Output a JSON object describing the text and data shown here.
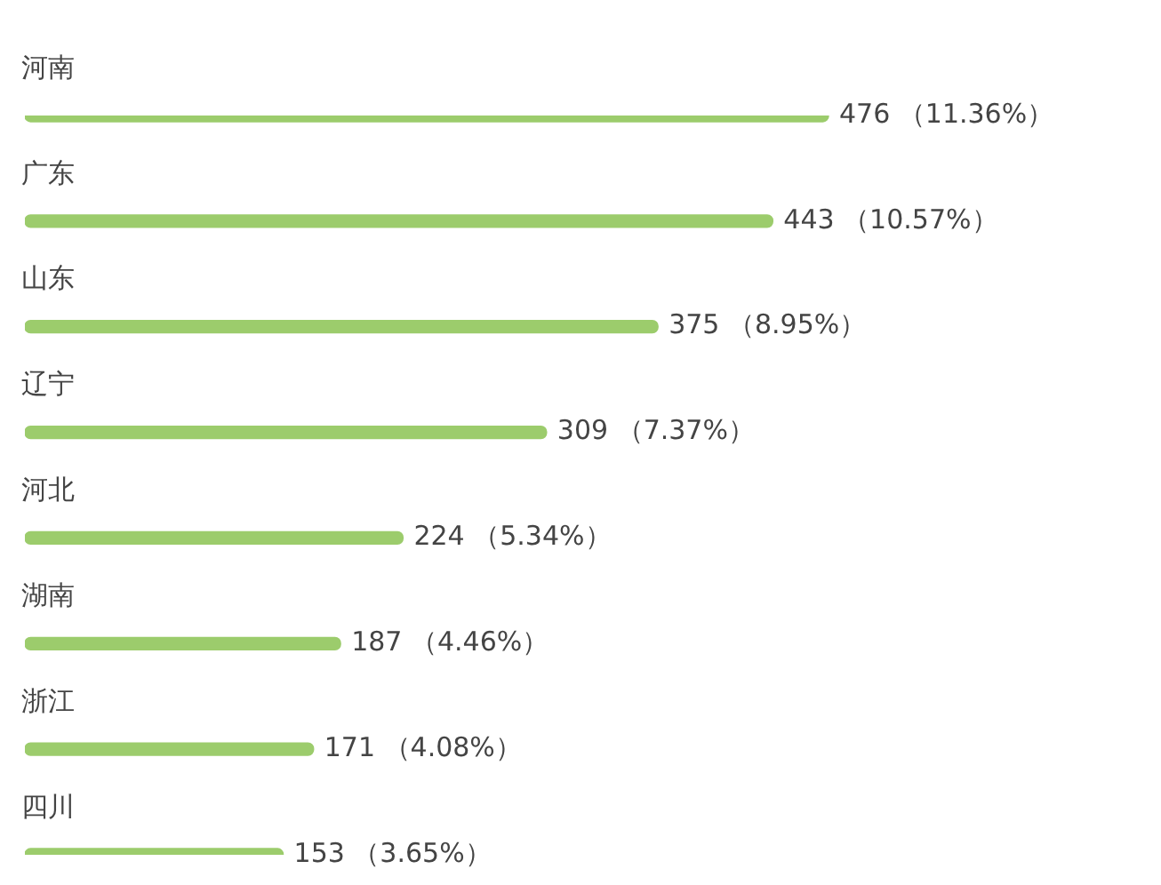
{
  "chart_data": {
    "type": "bar",
    "orientation": "horizontal",
    "categories": [
      "河南",
      "广东",
      "山东",
      "辽宁",
      "河北",
      "湖南",
      "浙江",
      "四川"
    ],
    "values": [
      476,
      443,
      375,
      309,
      224,
      187,
      171,
      153
    ],
    "color": "#9ccc6c",
    "value_labels": [
      "476 （11.36%）",
      "443 （10.57%）",
      "375 （8.95%）",
      "309 （7.37%）",
      "224 （5.34%）",
      "187 （4.46%）",
      "171 （4.08%）",
      "153 （3.65%）"
    ],
    "legend": false
  }
}
